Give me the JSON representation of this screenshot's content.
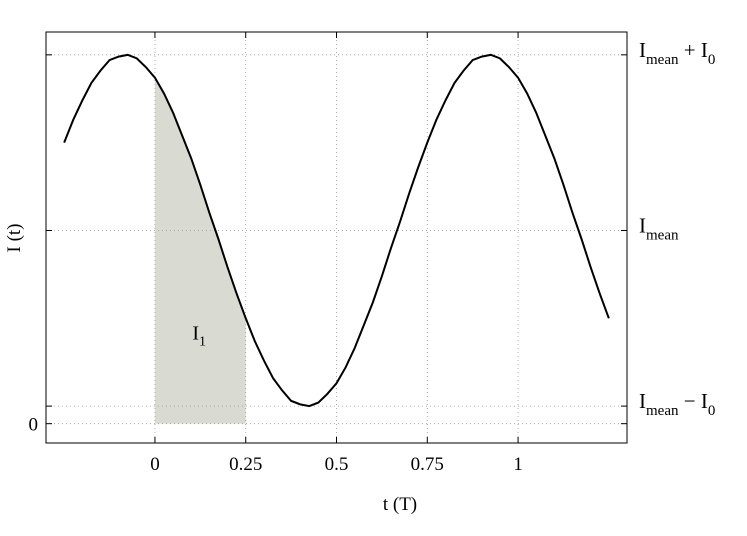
{
  "chart_data": {
    "type": "line",
    "x_label": "t (T)",
    "y_label": "I (t)",
    "x": [
      -0.25,
      -0.225,
      -0.2,
      -0.175,
      -0.15,
      -0.125,
      -0.1,
      -0.075,
      -0.05,
      -0.025,
      0,
      0.025,
      0.05,
      0.075,
      0.1,
      0.125,
      0.15,
      0.175,
      0.2,
      0.225,
      0.25,
      0.275,
      0.3,
      0.325,
      0.35,
      0.375,
      0.4,
      0.425,
      0.45,
      0.475,
      0.5,
      0.525,
      0.55,
      0.575,
      0.6,
      0.625,
      0.65,
      0.675,
      0.7,
      0.725,
      0.75,
      0.775,
      0.8,
      0.825,
      0.85,
      0.875,
      0.9,
      0.925,
      0.95,
      0.975,
      1,
      1.025,
      1.05,
      1.075,
      1.1,
      1.125,
      1.15,
      1.175,
      1.2,
      1.225,
      1.25
    ],
    "series": [
      {
        "color": "#000000",
        "values": [
          1.6,
          1.73,
          1.84,
          1.94,
          2.01,
          2.07,
          2.09,
          2.1,
          2.08,
          2.03,
          1.97,
          1.88,
          1.77,
          1.64,
          1.51,
          1.36,
          1.2,
          1.05,
          0.89,
          0.74,
          0.6,
          0.47,
          0.36,
          0.26,
          0.19,
          0.13,
          0.11,
          0.1,
          0.12,
          0.17,
          0.23,
          0.32,
          0.43,
          0.56,
          0.69,
          0.84,
          1.0,
          1.15,
          1.31,
          1.46,
          1.6,
          1.73,
          1.84,
          1.94,
          2.01,
          2.07,
          2.09,
          2.1,
          2.08,
          2.03,
          1.97,
          1.88,
          1.77,
          1.64,
          1.51,
          1.36,
          1.2,
          1.05,
          0.89,
          0.74,
          0.6
        ]
      }
    ],
    "xlim": [
      -0.3,
      1.3
    ],
    "xticks": [
      0,
      0.25,
      0.5,
      0.75,
      1
    ],
    "ylim": [
      -0.11,
      2.23
    ],
    "yticks": [
      0
    ],
    "y2lim": [
      -0.11,
      2.23
    ],
    "y2ticks": [
      {
        "value": 0.1,
        "label": [
          "I",
          "mean",
          " − I",
          "0"
        ]
      },
      {
        "value": 1.1,
        "label": [
          "I",
          "mean"
        ]
      },
      {
        "value": 2.1,
        "label": [
          "I",
          "mean",
          " + I",
          "0"
        ]
      }
    ],
    "grid": true,
    "shade": {
      "from": 0,
      "to": 0.25,
      "color": "#d9dbd3",
      "label": [
        "I",
        "1"
      ]
    }
  }
}
